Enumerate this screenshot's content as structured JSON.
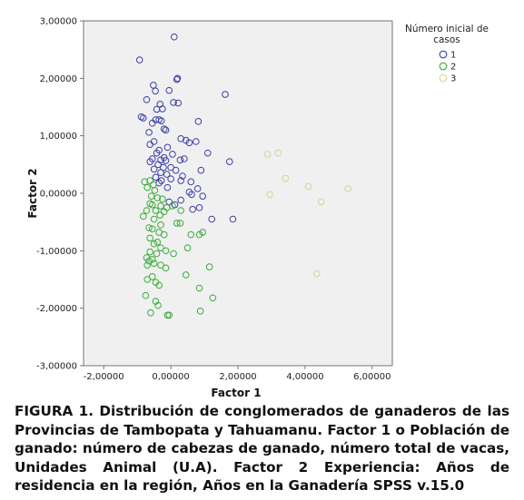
{
  "chart_data": {
    "type": "scatter",
    "xlabel": "Factor 1",
    "ylabel": "Factor 2",
    "xlim": [
      -2.6,
      6.6
    ],
    "ylim": [
      -3.0,
      3.0
    ],
    "xticks": [
      -2,
      0,
      2,
      4,
      6
    ],
    "yticks": [
      -3,
      -2,
      -1,
      0,
      1,
      2,
      3
    ],
    "xtick_labels": [
      "-2,00000",
      "0,00000",
      "2,00000",
      "4,00000",
      "6,00000"
    ],
    "ytick_labels": [
      "-3,00000",
      "-2,00000",
      "-1,00000",
      "0,00000",
      "1,00000",
      "2,00000",
      "3,00000"
    ],
    "legend": {
      "title": "Número inicial de casos",
      "position": "top-right",
      "entries": [
        {
          "label": "1",
          "color": "#3b3fa6"
        },
        {
          "label": "2",
          "color": "#3aab3a"
        },
        {
          "label": "3",
          "color": "#d4d49a"
        }
      ]
    },
    "plot_background": "#f0f0f0",
    "grid": false,
    "series": [
      {
        "name": "1",
        "color": "#3b3fa6",
        "points": [
          [
            -0.93,
            2.32
          ],
          [
            0.1,
            2.72
          ],
          [
            0.18,
            1.98
          ],
          [
            0.2,
            2.0
          ],
          [
            -0.52,
            1.88
          ],
          [
            -0.46,
            1.78
          ],
          [
            -0.05,
            1.79
          ],
          [
            1.62,
            1.72
          ],
          [
            -0.72,
            1.63
          ],
          [
            -0.32,
            1.55
          ],
          [
            0.08,
            1.58
          ],
          [
            0.22,
            1.57
          ],
          [
            -0.25,
            1.47
          ],
          [
            -0.42,
            1.46
          ],
          [
            -0.88,
            1.33
          ],
          [
            -0.82,
            1.31
          ],
          [
            -0.45,
            1.28
          ],
          [
            -0.35,
            1.28
          ],
          [
            -0.28,
            1.26
          ],
          [
            -0.55,
            1.22
          ],
          [
            0.82,
            1.25
          ],
          [
            -0.2,
            1.12
          ],
          [
            -0.15,
            1.1
          ],
          [
            -0.65,
            1.06
          ],
          [
            0.3,
            0.95
          ],
          [
            0.45,
            0.92
          ],
          [
            0.55,
            0.88
          ],
          [
            0.75,
            0.9
          ],
          [
            -0.5,
            0.9
          ],
          [
            -0.62,
            0.85
          ],
          [
            -0.1,
            0.8
          ],
          [
            -0.35,
            0.75
          ],
          [
            -0.42,
            0.7
          ],
          [
            1.1,
            0.7
          ],
          [
            0.05,
            0.68
          ],
          [
            -0.2,
            0.62
          ],
          [
            -0.55,
            0.6
          ],
          [
            -0.3,
            0.58
          ],
          [
            -0.15,
            0.57
          ],
          [
            0.4,
            0.6
          ],
          [
            -0.62,
            0.55
          ],
          [
            0.28,
            0.58
          ],
          [
            1.75,
            0.55
          ],
          [
            -0.38,
            0.5
          ],
          [
            -0.22,
            0.45
          ],
          [
            0.0,
            0.45
          ],
          [
            0.15,
            0.4
          ],
          [
            -0.5,
            0.42
          ],
          [
            0.9,
            0.4
          ],
          [
            -0.3,
            0.36
          ],
          [
            -0.12,
            0.33
          ],
          [
            -0.45,
            0.28
          ],
          [
            0.0,
            0.25
          ],
          [
            0.3,
            0.22
          ],
          [
            0.6,
            0.2
          ],
          [
            -0.35,
            0.18
          ],
          [
            -0.1,
            0.1
          ],
          [
            0.8,
            0.08
          ],
          [
            0.55,
            0.02
          ],
          [
            0.62,
            -0.02
          ],
          [
            0.95,
            -0.05
          ],
          [
            0.3,
            -0.12
          ],
          [
            -0.05,
            -0.15
          ],
          [
            0.12,
            -0.2
          ],
          [
            0.85,
            -0.25
          ],
          [
            0.65,
            -0.28
          ],
          [
            1.22,
            -0.45
          ],
          [
            1.85,
            -0.45
          ],
          [
            0.35,
            0.3
          ],
          [
            -0.28,
            0.22
          ]
        ]
      },
      {
        "name": "2",
        "color": "#3aab3a",
        "points": [
          [
            -0.78,
            0.2
          ],
          [
            -0.62,
            0.22
          ],
          [
            -0.52,
            0.15
          ],
          [
            -0.7,
            0.1
          ],
          [
            -0.48,
            0.05
          ],
          [
            -0.58,
            -0.05
          ],
          [
            -0.4,
            -0.08
          ],
          [
            -0.25,
            -0.1
          ],
          [
            -0.62,
            -0.18
          ],
          [
            -0.55,
            -0.2
          ],
          [
            -0.3,
            -0.22
          ],
          [
            -0.12,
            -0.25
          ],
          [
            0.05,
            -0.22
          ],
          [
            -0.72,
            -0.3
          ],
          [
            -0.45,
            -0.3
          ],
          [
            -0.32,
            -0.38
          ],
          [
            -0.2,
            -0.32
          ],
          [
            0.3,
            -0.3
          ],
          [
            -0.82,
            -0.4
          ],
          [
            -0.5,
            -0.45
          ],
          [
            0.18,
            -0.52
          ],
          [
            0.28,
            -0.52
          ],
          [
            -0.3,
            -0.55
          ],
          [
            -0.65,
            -0.6
          ],
          [
            -0.55,
            -0.62
          ],
          [
            0.85,
            -0.72
          ],
          [
            0.95,
            -0.68
          ],
          [
            0.6,
            -0.72
          ],
          [
            -0.35,
            -0.68
          ],
          [
            -0.2,
            -0.72
          ],
          [
            -0.62,
            -0.78
          ],
          [
            -0.4,
            -0.85
          ],
          [
            -0.5,
            -0.88
          ],
          [
            -0.3,
            -0.95
          ],
          [
            0.5,
            -0.95
          ],
          [
            -0.15,
            -1.0
          ],
          [
            -0.62,
            -1.02
          ],
          [
            -0.42,
            -1.05
          ],
          [
            0.08,
            -1.05
          ],
          [
            -0.72,
            -1.12
          ],
          [
            -0.55,
            -1.15
          ],
          [
            -0.65,
            -1.18
          ],
          [
            -0.5,
            -1.22
          ],
          [
            -0.7,
            -1.25
          ],
          [
            -0.3,
            -1.25
          ],
          [
            -0.15,
            -1.3
          ],
          [
            1.15,
            -1.28
          ],
          [
            0.45,
            -1.42
          ],
          [
            -0.55,
            -1.45
          ],
          [
            -0.7,
            -1.5
          ],
          [
            -0.45,
            -1.55
          ],
          [
            -0.35,
            -1.6
          ],
          [
            0.85,
            -1.65
          ],
          [
            -0.75,
            -1.78
          ],
          [
            1.25,
            -1.82
          ],
          [
            -0.45,
            -1.88
          ],
          [
            -0.38,
            -1.95
          ],
          [
            0.88,
            -2.05
          ],
          [
            -0.6,
            -2.08
          ],
          [
            -0.1,
            -2.12
          ],
          [
            -0.05,
            -2.12
          ]
        ]
      },
      {
        "name": "3",
        "color": "#d4d49a",
        "points": [
          [
            2.88,
            0.68
          ],
          [
            3.2,
            0.7
          ],
          [
            3.42,
            0.26
          ],
          [
            2.95,
            -0.02
          ],
          [
            4.1,
            0.12
          ],
          [
            5.28,
            0.08
          ],
          [
            4.48,
            -0.15
          ],
          [
            4.35,
            -1.4
          ]
        ]
      }
    ]
  },
  "caption": "FIGURA 1. Distribución de conglomerados de ganaderos de las Provincias de Tambopata y Tahuamanu. Factor 1 o Población de ganado: número de cabezas de ganado, número total de vacas, Unidades Animal (U.A). Factor 2 Experiencia: Años de residencia en la región, Años en la Ganadería SPSS v.15.0"
}
